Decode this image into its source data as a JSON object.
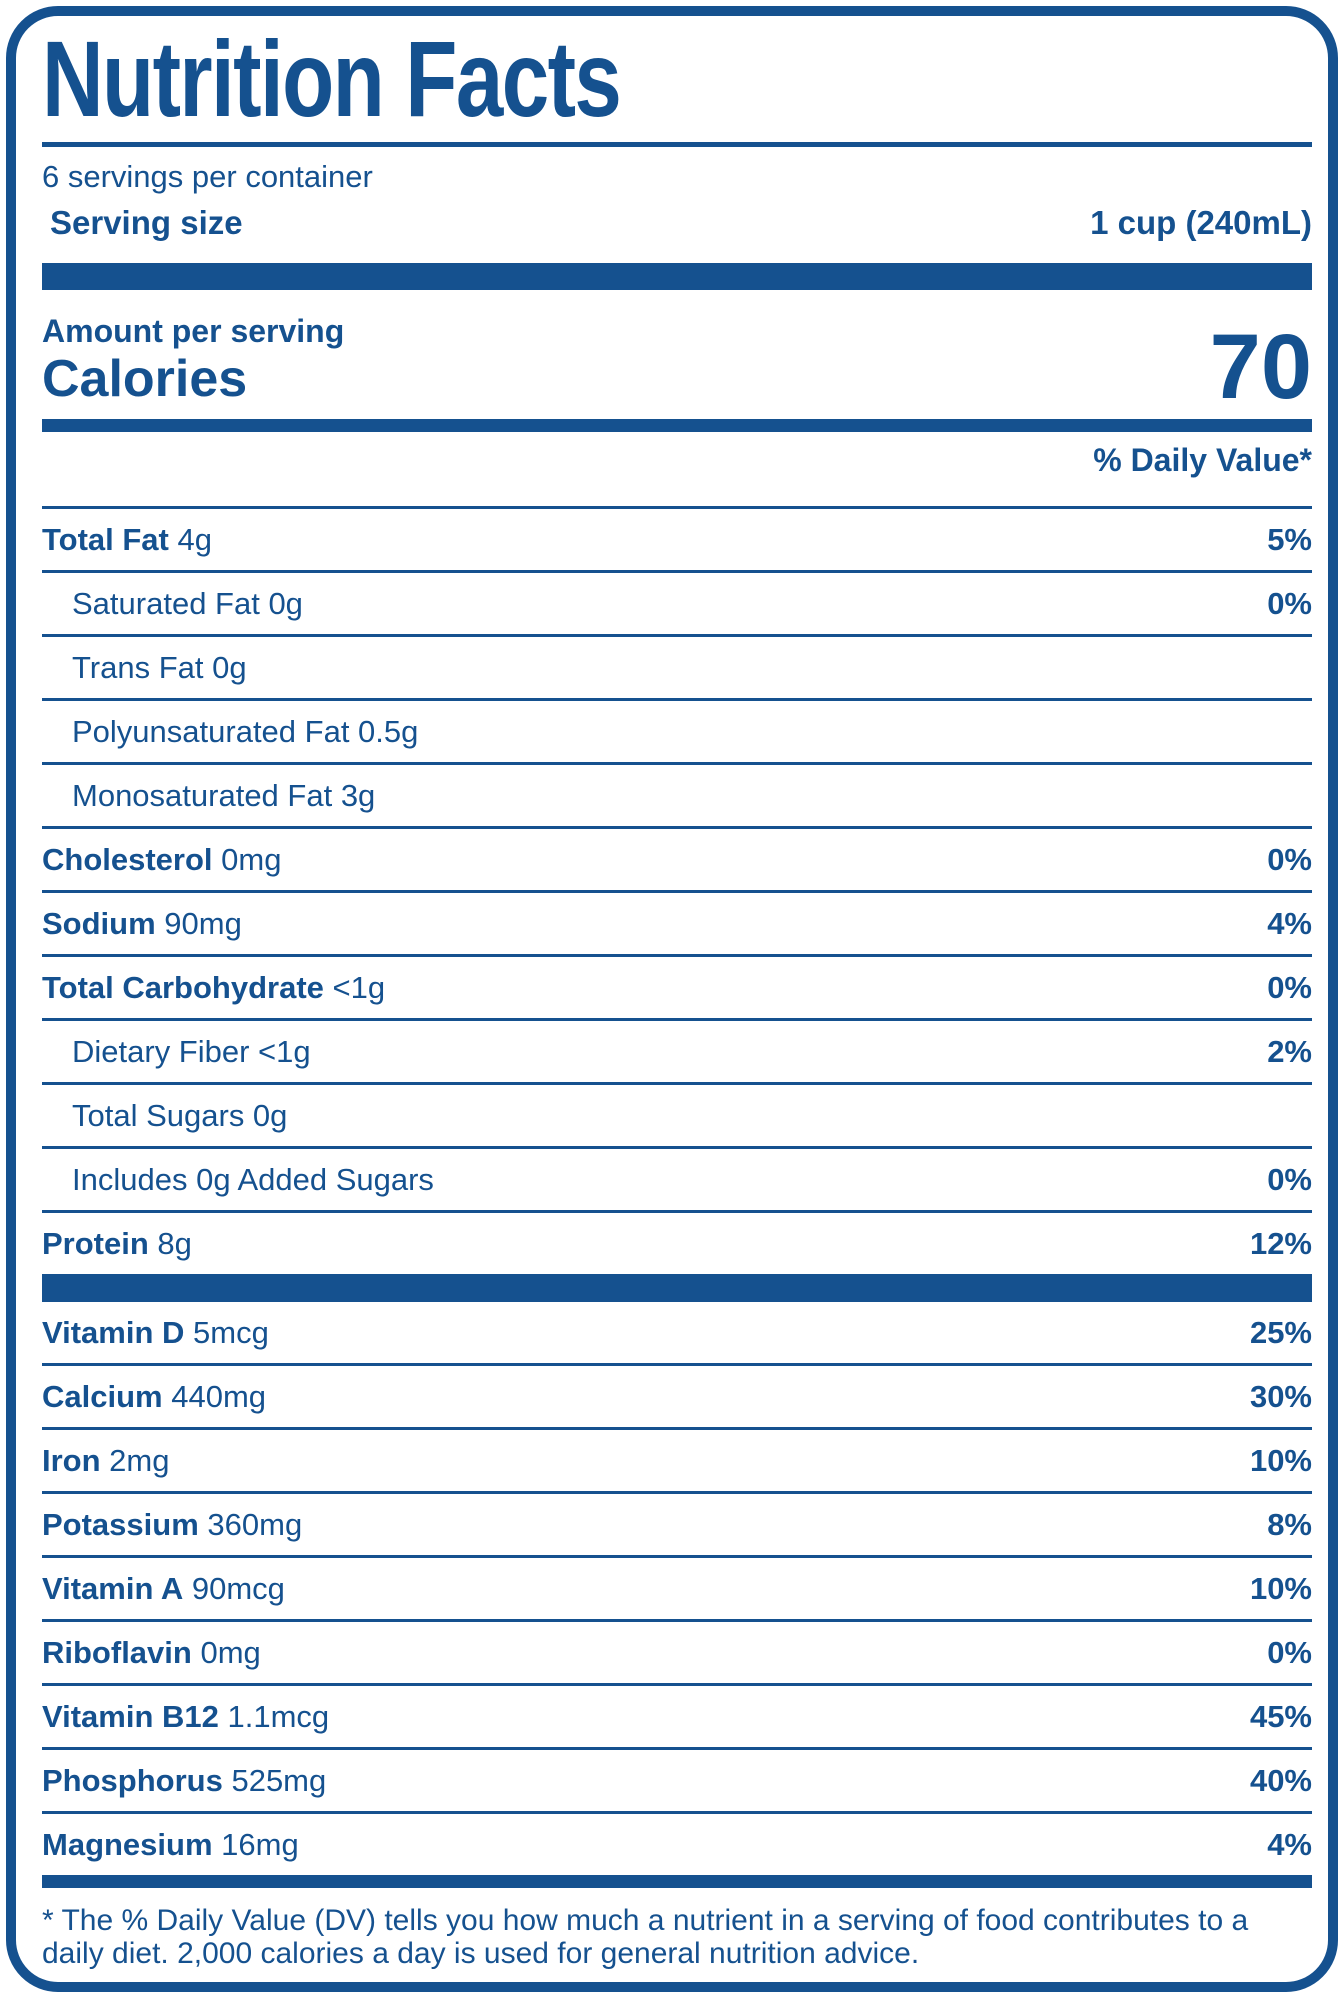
{
  "label": {
    "title": "Nutrition Facts",
    "servings_per_container": "6 servings per container",
    "serving_size_label": "Serving size",
    "serving_size_value": "1 cup (240mL)",
    "amount_per_serving": "Amount per serving",
    "calories_label": "Calories",
    "calories_value": "70",
    "daily_value_header": "% Daily Value*",
    "footnote": "* The % Daily Value (DV) tells you how much a nutrient in a serving of food contributes to a daily diet. 2,000 calories a day is used for general nutrition advice.",
    "colors": {
      "blue": "#15518F",
      "background": "#FFFFFF"
    },
    "nutrients": [
      {
        "name": "Total Fat",
        "value": "4g",
        "pct": "5%",
        "bold": true,
        "indent": 0
      },
      {
        "name": "Saturated Fat",
        "value": "0g",
        "pct": "0%",
        "bold": false,
        "indent": 1
      },
      {
        "name": "Trans Fat",
        "value": "0g",
        "pct": "",
        "bold": false,
        "indent": 1
      },
      {
        "name": "Polyunsaturated Fat",
        "value": "0.5g",
        "pct": "",
        "bold": false,
        "indent": 1
      },
      {
        "name": "Monosaturated Fat",
        "value": "3g",
        "pct": "",
        "bold": false,
        "indent": 1
      },
      {
        "name": "Cholesterol",
        "value": "0mg",
        "pct": "0%",
        "bold": true,
        "indent": 0
      },
      {
        "name": "Sodium",
        "value": "90mg",
        "pct": "4%",
        "bold": true,
        "indent": 0
      },
      {
        "name": "Total Carbohydrate",
        "value": "<1g",
        "pct": "0%",
        "bold": true,
        "indent": 0
      },
      {
        "name": "Dietary Fiber",
        "value": "<1g",
        "pct": "2%",
        "bold": false,
        "indent": 1
      },
      {
        "name": "Total Sugars",
        "value": "0g",
        "pct": "",
        "bold": false,
        "indent": 1
      },
      {
        "name": "Includes 0g Added Sugars",
        "value": "",
        "pct": "0%",
        "bold": false,
        "indent": 1
      },
      {
        "name": "Protein",
        "value": "8g",
        "pct": "12%",
        "bold": true,
        "indent": 0
      }
    ],
    "vitamins": [
      {
        "name": "Vitamin D",
        "value": "5mcg",
        "pct": "25%",
        "bold": true,
        "indent": 0
      },
      {
        "name": "Calcium",
        "value": "440mg",
        "pct": "30%",
        "bold": true,
        "indent": 0
      },
      {
        "name": "Iron",
        "value": "2mg",
        "pct": "10%",
        "bold": true,
        "indent": 0
      },
      {
        "name": "Potassium",
        "value": "360mg",
        "pct": "8%",
        "bold": true,
        "indent": 0
      },
      {
        "name": "Vitamin A",
        "value": "90mcg",
        "pct": "10%",
        "bold": true,
        "indent": 0
      },
      {
        "name": "Riboflavin",
        "value": "0mg",
        "pct": "0%",
        "bold": true,
        "indent": 0
      },
      {
        "name": "Vitamin B12",
        "value": "1.1mcg",
        "pct": "45%",
        "bold": true,
        "indent": 0
      },
      {
        "name": "Phosphorus",
        "value": "525mg",
        "pct": "40%",
        "bold": true,
        "indent": 0
      },
      {
        "name": "Magnesium",
        "value": "16mg",
        "pct": "4%",
        "bold": true,
        "indent": 0
      }
    ]
  }
}
